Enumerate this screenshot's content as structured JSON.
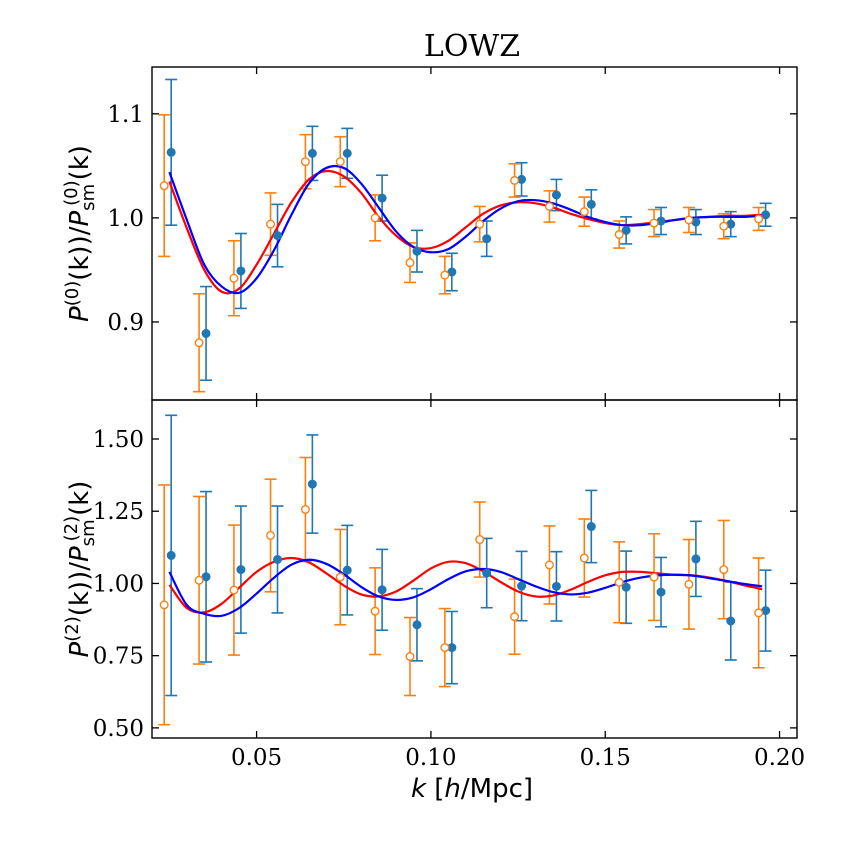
{
  "chart_data": {
    "type": "scatter",
    "title": "LOWZ",
    "xlabel": "k [h/Mpc]",
    "xlim": [
      0.02,
      0.205
    ],
    "x_ticks": [
      {
        "v": 0.05,
        "label": "0.05"
      },
      {
        "v": 0.1,
        "label": "0.10"
      },
      {
        "v": 0.15,
        "label": "0.15"
      },
      {
        "v": 0.2,
        "label": "0.20"
      }
    ],
    "colors": {
      "filled_points": "#1f77b4",
      "open_points": "#ff7f0e",
      "curve_blue": "#0000ff",
      "curve_red": "#ff0000"
    },
    "panels": [
      {
        "id": "monopole",
        "ylabel": {
          "main": "P",
          "sup1": "(0)",
          "mid": "(k)/P",
          "sub": "sm",
          "sup2": "(0)",
          "tail": "(k)"
        },
        "ylim": [
          0.825,
          1.145
        ],
        "y_ticks": [
          {
            "v": 0.9,
            "label": "0.9"
          },
          {
            "v": 1.0,
            "label": "1.0"
          },
          {
            "v": 1.1,
            "label": "1.1"
          }
        ],
        "series": [
          {
            "name": "filled",
            "marker": "filled-circle",
            "points": [
              {
                "x": 0.0255,
                "y": 1.063,
                "err": 0.07
              },
              {
                "x": 0.0355,
                "y": 0.889,
                "err": 0.045
              },
              {
                "x": 0.0455,
                "y": 0.949,
                "err": 0.036
              },
              {
                "x": 0.056,
                "y": 0.983,
                "err": 0.03
              },
              {
                "x": 0.066,
                "y": 1.062,
                "err": 0.026
              },
              {
                "x": 0.076,
                "y": 1.062,
                "err": 0.024
              },
              {
                "x": 0.086,
                "y": 1.019,
                "err": 0.022
              },
              {
                "x": 0.096,
                "y": 0.968,
                "err": 0.02
              },
              {
                "x": 0.106,
                "y": 0.948,
                "err": 0.018
              },
              {
                "x": 0.116,
                "y": 0.98,
                "err": 0.017
              },
              {
                "x": 0.126,
                "y": 1.037,
                "err": 0.016
              },
              {
                "x": 0.136,
                "y": 1.022,
                "err": 0.015
              },
              {
                "x": 0.146,
                "y": 1.013,
                "err": 0.014
              },
              {
                "x": 0.156,
                "y": 0.988,
                "err": 0.013
              },
              {
                "x": 0.166,
                "y": 0.997,
                "err": 0.013
              },
              {
                "x": 0.176,
                "y": 0.996,
                "err": 0.012
              },
              {
                "x": 0.186,
                "y": 0.994,
                "err": 0.012
              },
              {
                "x": 0.196,
                "y": 1.003,
                "err": 0.011
              }
            ]
          },
          {
            "name": "open",
            "marker": "open-circle",
            "points": [
              {
                "x": 0.0235,
                "y": 1.031,
                "err": 0.068
              },
              {
                "x": 0.0335,
                "y": 0.88,
                "err": 0.047
              },
              {
                "x": 0.0435,
                "y": 0.942,
                "err": 0.036
              },
              {
                "x": 0.054,
                "y": 0.994,
                "err": 0.03
              },
              {
                "x": 0.064,
                "y": 1.054,
                "err": 0.026
              },
              {
                "x": 0.074,
                "y": 1.054,
                "err": 0.024
              },
              {
                "x": 0.084,
                "y": 1.0,
                "err": 0.022
              },
              {
                "x": 0.094,
                "y": 0.957,
                "err": 0.019
              },
              {
                "x": 0.104,
                "y": 0.945,
                "err": 0.018
              },
              {
                "x": 0.114,
                "y": 0.994,
                "err": 0.017
              },
              {
                "x": 0.124,
                "y": 1.036,
                "err": 0.016
              },
              {
                "x": 0.134,
                "y": 1.011,
                "err": 0.015
              },
              {
                "x": 0.144,
                "y": 1.006,
                "err": 0.014
              },
              {
                "x": 0.154,
                "y": 0.984,
                "err": 0.013
              },
              {
                "x": 0.164,
                "y": 0.995,
                "err": 0.013
              },
              {
                "x": 0.174,
                "y": 0.998,
                "err": 0.012
              },
              {
                "x": 0.184,
                "y": 0.992,
                "err": 0.012
              },
              {
                "x": 0.194,
                "y": 0.999,
                "err": 0.011
              }
            ]
          }
        ],
        "curves": [
          {
            "name": "blue",
            "x": [
              0.025,
              0.03,
              0.035,
              0.04,
              0.045,
              0.05,
              0.055,
              0.06,
              0.065,
              0.07,
              0.075,
              0.08,
              0.085,
              0.09,
              0.095,
              0.1,
              0.105,
              0.11,
              0.115,
              0.12,
              0.125,
              0.13,
              0.135,
              0.14,
              0.145,
              0.15,
              0.155,
              0.16,
              0.165,
              0.17,
              0.175,
              0.18,
              0.185,
              0.19,
              0.195
            ],
            "y": [
              1.044,
              0.998,
              0.955,
              0.934,
              0.928,
              0.942,
              0.969,
              1.003,
              1.033,
              1.048,
              1.048,
              1.033,
              1.01,
              0.987,
              0.972,
              0.967,
              0.97,
              0.982,
              0.997,
              1.009,
              1.016,
              1.017,
              1.014,
              1.008,
              1.001,
              0.996,
              0.993,
              0.993,
              0.995,
              0.998,
              1.0,
              1.001,
              1.001,
              1.001,
              1.002
            ]
          },
          {
            "name": "red",
            "x": [
              0.025,
              0.03,
              0.035,
              0.04,
              0.045,
              0.05,
              0.055,
              0.06,
              0.065,
              0.07,
              0.075,
              0.08,
              0.085,
              0.09,
              0.095,
              0.1,
              0.105,
              0.11,
              0.115,
              0.12,
              0.125,
              0.13,
              0.135,
              0.14,
              0.145,
              0.15,
              0.155,
              0.16,
              0.165,
              0.17,
              0.175,
              0.18,
              0.185,
              0.19,
              0.195
            ],
            "y": [
              1.035,
              0.99,
              0.95,
              0.929,
              0.932,
              0.955,
              0.985,
              1.015,
              1.037,
              1.045,
              1.04,
              1.024,
              1.001,
              0.983,
              0.972,
              0.971,
              0.978,
              0.991,
              1.004,
              1.012,
              1.015,
              1.014,
              1.01,
              1.004,
              0.999,
              0.995,
              0.993,
              0.994,
              0.996,
              0.998,
              1.0,
              1.001,
              1.002,
              1.002,
              1.003
            ]
          }
        ]
      },
      {
        "id": "quadrupole",
        "ylabel": {
          "main": "P",
          "sup1": "(2)",
          "mid": "(k)/P",
          "sub": "sm",
          "sup2": "(2)",
          "tail": "(k)"
        },
        "ylim": [
          0.465,
          1.635
        ],
        "y_ticks": [
          {
            "v": 0.5,
            "label": "0.50"
          },
          {
            "v": 0.75,
            "label": "0.75"
          },
          {
            "v": 1.0,
            "label": "1.00"
          },
          {
            "v": 1.25,
            "label": "1.25"
          },
          {
            "v": 1.5,
            "label": "1.50"
          }
        ],
        "series": [
          {
            "name": "filled",
            "marker": "filled-circle",
            "points": [
              {
                "x": 0.0255,
                "y": 1.097,
                "err": 0.485
              },
              {
                "x": 0.0355,
                "y": 1.023,
                "err": 0.295
              },
              {
                "x": 0.0455,
                "y": 1.048,
                "err": 0.22
              },
              {
                "x": 0.056,
                "y": 1.083,
                "err": 0.185
              },
              {
                "x": 0.066,
                "y": 1.344,
                "err": 0.17
              },
              {
                "x": 0.076,
                "y": 1.046,
                "err": 0.155
              },
              {
                "x": 0.086,
                "y": 0.978,
                "err": 0.14
              },
              {
                "x": 0.096,
                "y": 0.857,
                "err": 0.125
              },
              {
                "x": 0.106,
                "y": 0.778,
                "err": 0.125
              },
              {
                "x": 0.116,
                "y": 1.036,
                "err": 0.12
              },
              {
                "x": 0.126,
                "y": 0.991,
                "err": 0.12
              },
              {
                "x": 0.136,
                "y": 0.99,
                "err": 0.12
              },
              {
                "x": 0.146,
                "y": 1.197,
                "err": 0.125
              },
              {
                "x": 0.156,
                "y": 0.987,
                "err": 0.125
              },
              {
                "x": 0.166,
                "y": 0.97,
                "err": 0.12
              },
              {
                "x": 0.176,
                "y": 1.085,
                "err": 0.13
              },
              {
                "x": 0.186,
                "y": 0.87,
                "err": 0.135
              },
              {
                "x": 0.196,
                "y": 0.906,
                "err": 0.14
              }
            ]
          },
          {
            "name": "open",
            "marker": "open-circle",
            "points": [
              {
                "x": 0.0235,
                "y": 0.926,
                "err": 0.415
              },
              {
                "x": 0.0335,
                "y": 1.011,
                "err": 0.29
              },
              {
                "x": 0.0435,
                "y": 0.977,
                "err": 0.225
              },
              {
                "x": 0.054,
                "y": 1.166,
                "err": 0.195
              },
              {
                "x": 0.064,
                "y": 1.256,
                "err": 0.18
              },
              {
                "x": 0.074,
                "y": 1.022,
                "err": 0.165
              },
              {
                "x": 0.084,
                "y": 0.904,
                "err": 0.15
              },
              {
                "x": 0.094,
                "y": 0.747,
                "err": 0.135
              },
              {
                "x": 0.104,
                "y": 0.778,
                "err": 0.135
              },
              {
                "x": 0.114,
                "y": 1.152,
                "err": 0.13
              },
              {
                "x": 0.124,
                "y": 0.885,
                "err": 0.13
              },
              {
                "x": 0.134,
                "y": 1.064,
                "err": 0.135
              },
              {
                "x": 0.144,
                "y": 1.088,
                "err": 0.135
              },
              {
                "x": 0.154,
                "y": 1.004,
                "err": 0.14
              },
              {
                "x": 0.164,
                "y": 1.022,
                "err": 0.15
              },
              {
                "x": 0.174,
                "y": 0.997,
                "err": 0.155
              },
              {
                "x": 0.184,
                "y": 1.048,
                "err": 0.17
              },
              {
                "x": 0.194,
                "y": 0.898,
                "err": 0.19
              }
            ]
          }
        ],
        "curves": [
          {
            "name": "blue",
            "x": [
              0.025,
              0.03,
              0.035,
              0.04,
              0.045,
              0.05,
              0.055,
              0.06,
              0.065,
              0.07,
              0.075,
              0.08,
              0.085,
              0.09,
              0.095,
              0.1,
              0.105,
              0.11,
              0.115,
              0.12,
              0.125,
              0.13,
              0.135,
              0.14,
              0.145,
              0.15,
              0.155,
              0.16,
              0.165,
              0.17,
              0.175,
              0.18,
              0.185,
              0.19,
              0.195
            ],
            "y": [
              1.04,
              0.925,
              0.895,
              0.888,
              0.915,
              0.965,
              1.02,
              1.065,
              1.082,
              1.068,
              1.032,
              0.988,
              0.955,
              0.943,
              0.952,
              0.98,
              1.015,
              1.042,
              1.05,
              1.04,
              1.015,
              0.99,
              0.97,
              0.962,
              0.968,
              0.985,
              1.005,
              1.02,
              1.028,
              1.03,
              1.027,
              1.018,
              1.008,
              0.998,
              0.99
            ]
          },
          {
            "name": "red",
            "x": [
              0.025,
              0.03,
              0.035,
              0.04,
              0.045,
              0.05,
              0.055,
              0.06,
              0.065,
              0.07,
              0.075,
              0.08,
              0.085,
              0.09,
              0.095,
              0.1,
              0.105,
              0.11,
              0.115,
              0.12,
              0.125,
              0.13,
              0.135,
              0.14,
              0.145,
              0.15,
              0.155,
              0.16,
              0.165,
              0.17,
              0.175,
              0.18,
              0.185,
              0.19,
              0.195
            ],
            "y": [
              0.995,
              0.915,
              0.9,
              0.93,
              0.985,
              1.04,
              1.075,
              1.088,
              1.073,
              1.035,
              0.993,
              0.962,
              0.955,
              0.972,
              1.01,
              1.052,
              1.075,
              1.07,
              1.042,
              1.005,
              0.972,
              0.955,
              0.958,
              0.978,
              1.005,
              1.028,
              1.04,
              1.04,
              1.035,
              1.03,
              1.028,
              1.02,
              1.008,
              0.993,
              0.98
            ]
          }
        ]
      }
    ]
  }
}
